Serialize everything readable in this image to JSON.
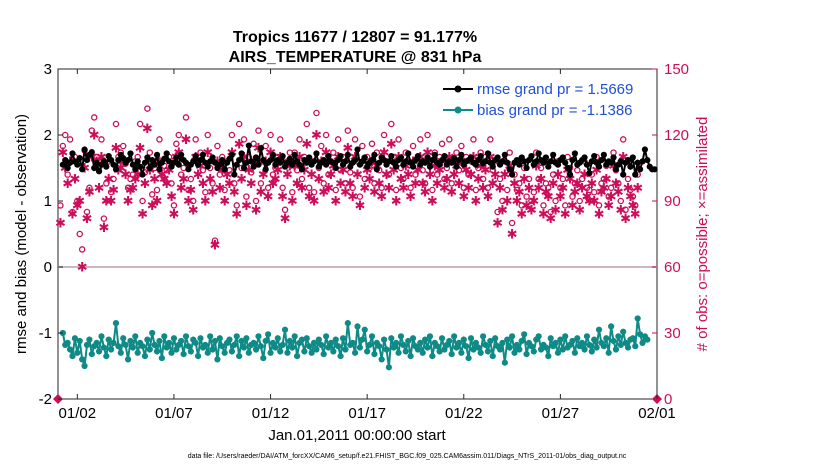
{
  "chart_data": {
    "type": "line",
    "title_line1": "Tropics 11677 / 12807 = 91.177%",
    "title_line2": "AIRS_TEMPERATURE @ 831 hPa",
    "xlabel": "Jan.01,2011 00:00:00 start",
    "ylabel": "rmse and bias (model - observation)",
    "ylabel_right": "# of obs: o=possible; ×=assimilated",
    "xlim": [
      0,
      31
    ],
    "ylim": [
      -2,
      3
    ],
    "ylim_right": [
      0,
      150
    ],
    "x_ticks": [
      {
        "value": 1,
        "label": "01/02"
      },
      {
        "value": 6,
        "label": "01/07"
      },
      {
        "value": 11,
        "label": "01/12"
      },
      {
        "value": 16,
        "label": "01/17"
      },
      {
        "value": 21,
        "label": "01/22"
      },
      {
        "value": 26,
        "label": "01/27"
      },
      {
        "value": 31,
        "label": "02/01"
      }
    ],
    "y_ticks": [
      -2,
      -1,
      0,
      1,
      2,
      3
    ],
    "y_ticks_right": [
      0,
      30,
      60,
      90,
      120,
      150
    ],
    "x_step": 0.125,
    "colors": {
      "rmse": "#000000",
      "bias": "#0f8a86",
      "obs": "#cc0e5a",
      "zero_line": "#c9b8bd",
      "legend_text": "#1f4fd6"
    },
    "legend": [
      {
        "label": "rmse grand pr = 1.5669",
        "color": "#000000"
      },
      {
        "label": "bias grand pr = -1.1386",
        "color": "#0f8a86"
      }
    ],
    "series": [
      {
        "name": "rmse",
        "x_start": 0.25,
        "values": [
          1.55,
          1.62,
          1.5,
          1.58,
          1.72,
          1.6,
          1.55,
          1.65,
          1.48,
          1.78,
          1.62,
          1.7,
          1.74,
          1.5,
          1.58,
          1.45,
          1.55,
          1.6,
          1.52,
          1.68,
          1.62,
          1.55,
          1.48,
          1.62,
          1.7,
          1.65,
          1.58,
          1.62,
          1.72,
          1.55,
          1.48,
          1.6,
          1.52,
          1.4,
          1.58,
          1.66,
          1.5,
          1.62,
          1.55,
          1.7,
          1.48,
          1.58,
          1.64,
          1.72,
          1.6,
          1.52,
          1.58,
          1.66,
          1.55,
          1.7,
          1.62,
          1.58,
          1.48,
          1.55,
          1.6,
          1.68,
          1.55,
          1.62,
          1.7,
          1.58,
          1.52,
          1.6,
          1.66,
          1.58,
          1.5,
          1.55,
          1.62,
          1.48,
          1.58,
          1.64,
          1.7,
          1.4,
          1.55,
          1.62,
          1.72,
          1.5,
          1.58,
          1.84,
          1.6,
          1.52,
          1.66,
          1.55,
          1.8,
          1.62,
          1.48,
          1.58,
          1.62,
          1.7,
          1.55,
          1.62,
          1.58,
          1.68,
          1.52,
          1.58,
          1.64,
          1.55,
          1.7,
          1.6,
          1.55,
          1.48,
          1.62,
          1.58,
          1.66,
          1.55,
          1.6,
          1.72,
          1.52,
          1.58,
          1.62,
          1.55,
          1.68,
          1.6,
          1.58,
          1.5,
          1.62,
          1.68,
          1.55,
          1.6,
          1.7,
          1.52,
          1.58,
          1.62,
          1.78,
          1.55,
          1.6,
          1.66,
          1.52,
          1.58,
          1.62,
          1.7,
          1.48,
          1.58,
          1.66,
          1.62,
          1.55,
          1.6,
          1.68,
          1.58,
          1.52,
          1.62,
          1.66,
          1.55,
          1.6,
          1.72,
          1.58,
          1.52,
          1.62,
          1.68,
          1.55,
          1.6,
          1.58,
          1.66,
          1.52,
          1.62,
          1.7,
          1.58,
          1.55,
          1.62,
          1.68,
          1.55,
          1.6,
          1.58,
          1.65,
          1.52,
          1.62,
          1.7,
          1.55,
          1.6,
          1.62,
          1.66,
          1.58,
          1.55,
          1.62,
          1.68,
          1.57,
          1.6,
          1.72,
          1.58,
          1.52,
          1.62,
          1.66,
          1.55,
          1.6,
          1.7,
          1.58,
          1.48,
          1.4,
          1.58,
          1.62,
          1.55,
          1.66,
          1.6,
          1.5,
          1.62,
          1.68,
          1.55,
          1.6,
          1.72,
          1.62,
          1.58,
          1.66,
          1.52,
          1.6,
          1.7,
          1.58,
          1.55,
          1.62,
          1.66,
          1.58,
          1.5,
          1.4,
          1.62,
          1.72,
          1.55,
          1.58,
          1.62,
          1.66,
          1.55,
          1.42,
          1.6,
          1.68,
          1.58,
          1.52,
          1.62,
          1.7,
          1.55,
          1.6,
          1.58,
          1.66,
          1.48,
          1.55,
          1.6,
          1.4,
          1.58,
          1.62,
          1.52,
          1.66,
          1.4,
          1.58,
          1.48,
          1.6,
          1.78,
          1.62,
          1.52,
          1.48,
          1.48
        ]
      },
      {
        "name": "bias",
        "x_start": 0.25,
        "values": [
          -1.0,
          -1.18,
          -1.15,
          -1.25,
          -1.35,
          -1.08,
          -1.3,
          -1.12,
          -1.4,
          -1.5,
          -1.18,
          -1.1,
          -1.32,
          -1.2,
          -1.15,
          -1.28,
          -1.05,
          -1.22,
          -1.35,
          -1.1,
          -1.25,
          -1.15,
          -0.85,
          -1.2,
          -1.3,
          -1.08,
          -1.18,
          -1.4,
          -1.12,
          -1.22,
          -1.05,
          -1.3,
          -1.15,
          -1.2,
          -1.35,
          -1.1,
          -1.25,
          -1.0,
          -1.18,
          -1.28,
          -1.12,
          -1.38,
          -1.05,
          -1.22,
          -1.15,
          -1.3,
          -1.08,
          -1.25,
          -1.18,
          -1.12,
          -1.32,
          -1.05,
          -1.2,
          -1.28,
          -1.1,
          -1.15,
          -1.35,
          -1.08,
          -1.22,
          -1.18,
          -1.3,
          -1.05,
          -1.25,
          -1.12,
          -1.4,
          -1.08,
          -1.2,
          -1.3,
          -1.15,
          -1.1,
          -1.28,
          -1.18,
          -1.05,
          -1.35,
          -1.12,
          -1.22,
          -1.08,
          -1.3,
          -1.18,
          -1.15,
          -1.25,
          -1.05,
          -1.2,
          -1.38,
          -1.12,
          -1.02,
          -1.3,
          -1.15,
          -1.22,
          -1.08,
          -1.28,
          -1.18,
          -0.95,
          -1.3,
          -1.12,
          -1.22,
          -1.05,
          -1.35,
          -1.15,
          -1.1,
          -1.28,
          -1.08,
          -1.2,
          -1.3,
          -1.15,
          -1.25,
          -1.1,
          -1.18,
          -1.32,
          -1.05,
          -1.22,
          -1.15,
          -1.28,
          -1.1,
          -1.2,
          -1.35,
          -1.08,
          -1.25,
          -0.85,
          -1.18,
          -1.15,
          -1.3,
          -0.9,
          -1.22,
          -1.1,
          -0.95,
          -1.28,
          -1.18,
          -1.05,
          -1.32,
          -1.15,
          -1.2,
          -1.4,
          -1.1,
          -1.25,
          -1.52,
          -1.08,
          -1.22,
          -1.15,
          -1.3,
          -1.05,
          -1.18,
          -1.28,
          -1.12,
          -1.35,
          -1.08,
          -1.2,
          -1.25,
          -1.15,
          -1.3,
          -1.1,
          -1.22,
          -1.05,
          -1.35,
          -1.15,
          -1.2,
          -1.28,
          -1.08,
          -1.25,
          -1.18,
          -1.12,
          -1.32,
          -1.05,
          -1.22,
          -1.15,
          -1.3,
          -1.1,
          -1.2,
          -1.38,
          -1.08,
          -1.25,
          -1.15,
          -1.22,
          -1.3,
          -1.05,
          -1.18,
          -1.28,
          -1.12,
          -1.35,
          -1.08,
          -1.2,
          -1.25,
          -1.15,
          -1.45,
          -1.1,
          -1.22,
          -1.05,
          -1.3,
          -1.18,
          -1.25,
          -1.12,
          -1.02,
          -1.32,
          -1.15,
          -1.2,
          -1.28,
          -1.1,
          -1.05,
          -1.25,
          -1.18,
          -1.22,
          -1.35,
          -1.08,
          -1.2,
          -1.15,
          -1.3,
          -1.1,
          -1.25,
          -1.05,
          -1.22,
          -1.18,
          -1.12,
          -1.3,
          -1.08,
          -1.2,
          -1.15,
          -1.25,
          -1.05,
          -1.18,
          -1.28,
          -1.1,
          -1.22,
          -0.95,
          -1.15,
          -1.2,
          -1.08,
          -1.3,
          -0.9,
          -1.12,
          -1.25,
          -1.05,
          -1.18,
          -0.98,
          -1.15,
          -1.22,
          -1.1,
          -1.08,
          -1.2,
          -0.78,
          -1.02,
          -1.15,
          -1.05,
          -1.1
        ]
      },
      {
        "name": "obs possible",
        "marker": "o",
        "axis": "right",
        "x_start": 0.0,
        "values": [
          0,
          88,
          115,
          120,
          102,
          118,
          85,
          110,
          90,
          75,
          68,
          113,
          85,
          96,
          122,
          128,
          110,
          105,
          118,
          82,
          98,
          108,
          94,
          100,
          125,
          110,
          112,
          115,
          107,
          96,
          100,
          102,
          108,
          110,
          125,
          90,
          103,
          132,
          112,
          93,
          105,
          95,
          118,
          108,
          106,
          104,
          110,
          98,
          88,
          116,
          120,
          102,
          105,
          128,
          95,
          100,
          90,
          118,
          108,
          112,
          104,
          94,
          120,
          105,
          98,
          72,
          115,
          102,
          110,
          95,
          108,
          104,
          120,
          98,
          88,
          125,
          105,
          118,
          92,
          110,
          103,
          116,
          90,
          122,
          98,
          108,
          115,
          96,
          120,
          102,
          105,
          110,
          118,
          96,
          86,
          108,
          112,
          94,
          112,
          104,
          118,
          100,
          110,
          125,
          96,
          108,
          94,
          130,
          105,
          115,
          98,
          120,
          102,
          108,
          112,
          95,
          118,
          104,
          110,
          98,
          122,
          103,
          96,
          118,
          108,
          92,
          115,
          100,
          110,
          105,
          116,
          98,
          112,
          104,
          96,
          120,
          108,
          102,
          125,
          110,
          95,
          118,
          105,
          100,
          112,
          108,
          96,
          115,
          102,
          110,
          118,
          104,
          98,
          120,
          108,
          95,
          112,
          102,
          110,
          116,
          100,
          105,
          118,
          98,
          108,
          112,
          104,
          115,
          96,
          110,
          102,
          108,
          118,
          95,
          105,
          112,
          100,
          110,
          96,
          118,
          104,
          108,
          85,
          100,
          90,
          108,
          95,
          112,
          80,
          102,
          95,
          98,
          88,
          105,
          92,
          100,
          90,
          94,
          112,
          100,
          105,
          88,
          98,
          96,
          85,
          102,
          90,
          108,
          96,
          100,
          88,
          110,
          105,
          92,
          98,
          104,
          90,
          100,
          108,
          96,
          95,
          102,
          94,
          110,
          88,
          98,
          100,
          106,
          92,
          96,
          112,
          104,
          98,
          90,
          118,
          86,
          100,
          95,
          92,
          88,
          102
        ]
      },
      {
        "name": "obs assimilated",
        "marker": "asterisk",
        "axis": "right",
        "x_start": 0.0,
        "values": [
          0,
          80,
          112,
          105,
          98,
          108,
          84,
          100,
          88,
          90,
          60,
          105,
          82,
          94,
          110,
          120,
          108,
          96,
          110,
          78,
          90,
          100,
          90,
          95,
          114,
          104,
          105,
          108,
          102,
          90,
          95,
          96,
          100,
          102,
          114,
          84,
          98,
          123,
          104,
          88,
          100,
          90,
          108,
          102,
          100,
          98,
          104,
          92,
          84,
          110,
          112,
          96,
          100,
          118,
          90,
          95,
          86,
          110,
          102,
          106,
          98,
          90,
          112,
          100,
          94,
          70,
          108,
          96,
          104,
          90,
          102,
          98,
          112,
          94,
          84,
          116,
          100,
          110,
          88,
          104,
          98,
          108,
          86,
          114,
          94,
          102,
          108,
          92,
          112,
          98,
          100,
          104,
          110,
          92,
          82,
          102,
          106,
          90,
          106,
          98,
          110,
          96,
          104,
          116,
          92,
          102,
          90,
          120,
          100,
          108,
          94,
          112,
          96,
          102,
          106,
          90,
          110,
          98,
          104,
          94,
          114,
          98,
          92,
          110,
          102,
          88,
          108,
          96,
          104,
          100,
          108,
          94,
          106,
          98,
          92,
          112,
          102,
          96,
          116,
          104,
          90,
          110,
          100,
          96,
          106,
          102,
          92,
          108,
          98,
          104,
          110,
          98,
          94,
          112,
          102,
          90,
          106,
          98,
          104,
          108,
          96,
          100,
          110,
          94,
          102,
          106,
          98,
          108,
          92,
          104,
          96,
          102,
          110,
          90,
          100,
          106,
          96,
          104,
          92,
          110,
          98,
          102,
          80,
          96,
          86,
          102,
          90,
          106,
          75,
          98,
          90,
          94,
          84,
          100,
          88,
          96,
          86,
          90,
          106,
          96,
          100,
          84,
          94,
          92,
          82,
          98,
          86,
          102,
          92,
          96,
          84,
          104,
          100,
          88,
          94,
          98,
          86,
          96,
          102,
          92,
          90,
          98,
          90,
          104,
          84,
          94,
          96,
          100,
          88,
          92,
          106,
          98,
          94,
          86,
          110,
          82,
          96,
          92,
          88,
          84,
          96
        ]
      }
    ]
  },
  "footer": {
    "data_file": "data file: /Users/raeder/DAI/ATM_forcXX/CAM6_setup/f.e21.FHIST_BGC.f09_025.CAM6assim.011/Diags_NTrS_2011-01/obs_diag_output.nc"
  }
}
